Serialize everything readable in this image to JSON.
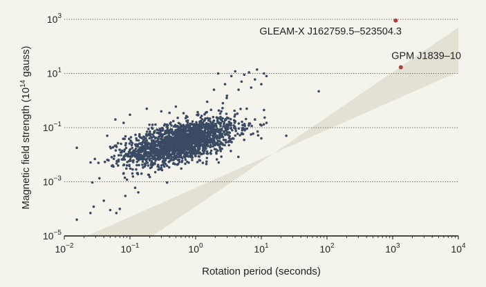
{
  "chart_data": {
    "type": "scatter",
    "title": "",
    "xlabel": "Rotation period (seconds)",
    "ylabel": "Magnetic field strength (10^14 gauss)",
    "ylabel_parts": {
      "pre": "Magnetic field strength (10",
      "sup": "14",
      "post": " gauss)"
    },
    "x_scale": "log",
    "y_scale": "log",
    "xlim": [
      0.01,
      10000
    ],
    "ylim": [
      1e-05,
      1000
    ],
    "x_ticks": [
      {
        "value": 0.01,
        "base": "10",
        "exp": "−2"
      },
      {
        "value": 0.1,
        "base": "10",
        "exp": "−1"
      },
      {
        "value": 1,
        "base": "10",
        "exp": "0"
      },
      {
        "value": 10,
        "base": "10",
        "exp": "1"
      },
      {
        "value": 100,
        "base": "10",
        "exp": "2"
      },
      {
        "value": 1000,
        "base": "10",
        "exp": "3"
      },
      {
        "value": 10000,
        "base": "10",
        "exp": "4"
      }
    ],
    "y_ticks": [
      {
        "value": 1e-05,
        "base": "10",
        "exp": "−5"
      },
      {
        "value": 0.001,
        "base": "10",
        "exp": "−3"
      },
      {
        "value": 0.1,
        "base": "10",
        "exp": "−1"
      },
      {
        "value": 10,
        "base": "10",
        "exp": "1"
      },
      {
        "value": 1000,
        "base": "10",
        "exp": "3"
      }
    ],
    "grid": "horizontal dotted",
    "band": {
      "lower": [
        [
          0.022,
          1e-05
        ],
        [
          10000,
          11.5
        ]
      ],
      "upper": [
        [
          0.22,
          1e-05
        ],
        [
          10000,
          500
        ]
      ]
    },
    "colors": {
      "points": "#3b4a63",
      "highlight": "#b8393a",
      "band": "#e3e0d4",
      "background": "#f4f3ec"
    },
    "cloud": {
      "center": [
        0.6,
        0.03
      ],
      "count": 1900
    },
    "series": [
      {
        "points": [
          [
            0.0155,
            4e-05
          ],
          [
            0.0155,
            0.018
          ],
          [
            0.025,
            7e-05
          ],
          [
            0.028,
            0.00012
          ],
          [
            0.04,
            0.0002
          ],
          [
            0.05,
            9e-05
          ],
          [
            0.062,
            7e-05
          ],
          [
            0.07,
            0.0001
          ],
          [
            0.085,
            0.0003
          ],
          [
            0.09,
            0.0012
          ],
          [
            0.12,
            0.0006
          ],
          [
            0.15,
            0.002
          ],
          [
            0.2,
            0.0015
          ],
          [
            0.06,
            0.2
          ],
          [
            0.045,
            0.05
          ],
          [
            0.08,
            0.15
          ],
          [
            0.1,
            0.3
          ],
          [
            0.18,
            0.5
          ],
          [
            0.3,
            0.4
          ],
          [
            0.4,
            0.35
          ],
          [
            0.5,
            0.6
          ],
          [
            1.5,
            0.9
          ],
          [
            1.9,
            2.5
          ],
          [
            2.6,
            0.8
          ],
          [
            3.0,
            1.5
          ],
          [
            3.5,
            8
          ],
          [
            4.0,
            12
          ],
          [
            5.0,
            5
          ],
          [
            5.5,
            9
          ],
          [
            6.5,
            11
          ],
          [
            7.0,
            3
          ],
          [
            8.0,
            6
          ],
          [
            8.6,
            14
          ],
          [
            10,
            4
          ],
          [
            11,
            10
          ],
          [
            12,
            8
          ],
          [
            2.2,
            10
          ],
          [
            2.8,
            4
          ],
          [
            4.5,
            2.5
          ],
          [
            6.0,
            0.5
          ],
          [
            8.0,
            0.2
          ],
          [
            12,
            0.15
          ],
          [
            24,
            0.05
          ],
          [
            75,
            2.2
          ],
          [
            3.8,
            0.12
          ],
          [
            5.6,
            0.08
          ],
          [
            7.5,
            0.06
          ],
          [
            10,
            0.04
          ]
        ]
      },
      {
        "name": "",
        "highlight": true,
        "points": [
          {
            "x": 1110,
            "y": 900,
            "label": "GLEAM-X J162759.5–523504.3"
          },
          {
            "x": 1330,
            "y": 17,
            "label": "GPM J1839–10"
          }
        ]
      }
    ]
  }
}
